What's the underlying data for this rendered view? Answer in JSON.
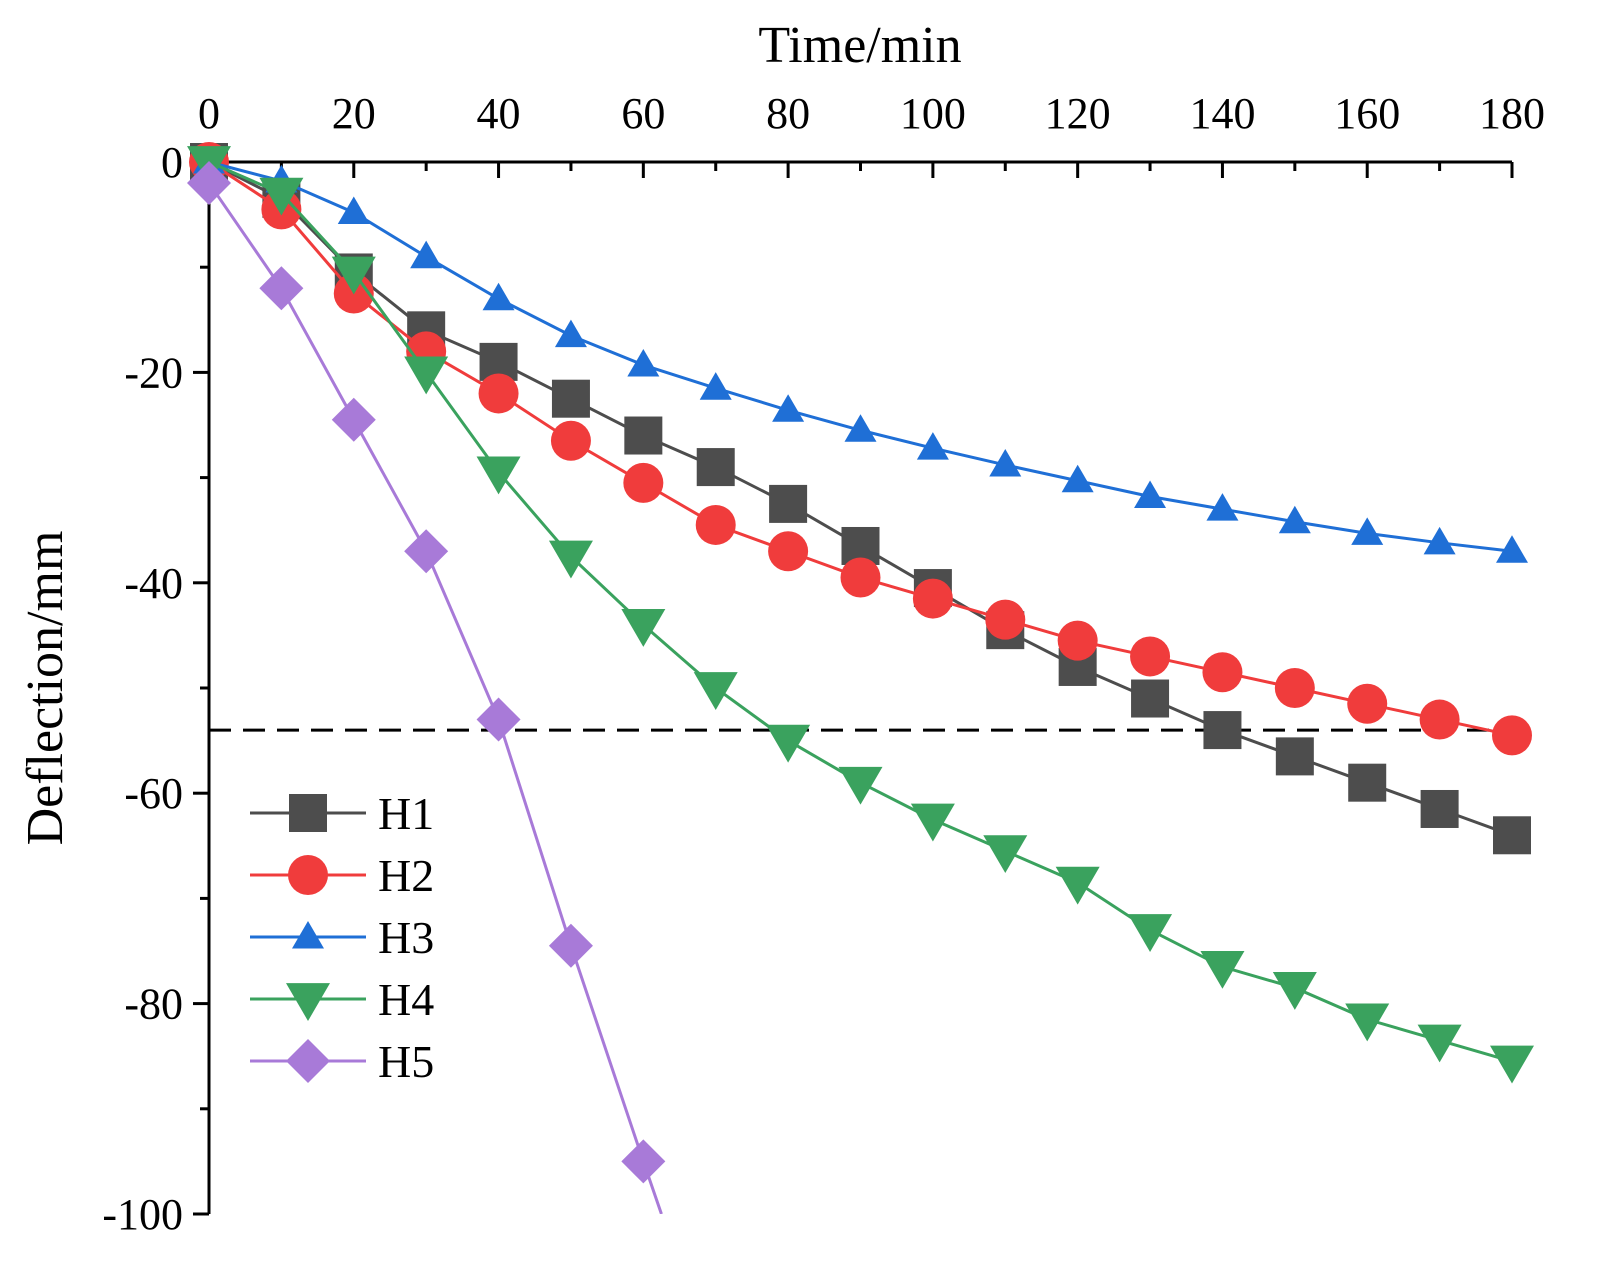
{
  "chart_data": {
    "type": "line",
    "title": "",
    "xlabel": "Time/min",
    "ylabel": "Deflection/mm",
    "xlim": [
      0,
      180
    ],
    "ylim": [
      -100,
      0
    ],
    "x_ticks": [
      0,
      20,
      40,
      60,
      80,
      100,
      120,
      140,
      160,
      180
    ],
    "y_ticks": [
      0,
      -20,
      -40,
      -60,
      -80,
      -100
    ],
    "x_tick_labels": [
      "0",
      "20",
      "40",
      "60",
      "80",
      "100",
      "120",
      "140",
      "160",
      "180"
    ],
    "y_tick_labels": [
      "0",
      "-20",
      "-40",
      "-60",
      "-80",
      "-100"
    ],
    "grid": false,
    "legend_position": "lower-left",
    "reference_line": {
      "y": -54,
      "style": "dashed",
      "color": "#000000"
    },
    "series": [
      {
        "name": "H1",
        "color": "#4d4d4d",
        "marker": "square",
        "x": [
          0,
          10,
          20,
          30,
          40,
          50,
          60,
          70,
          80,
          90,
          100,
          110,
          120,
          130,
          140,
          150,
          160,
          170,
          180
        ],
        "values": [
          0,
          -3.5,
          -10.5,
          -16,
          -19,
          -22.5,
          -26,
          -29,
          -32.5,
          -36.5,
          -40.5,
          -44.5,
          -48,
          -51,
          -54,
          -56.5,
          -59,
          -61.5,
          -64
        ]
      },
      {
        "name": "H2",
        "color": "#f03c3c",
        "marker": "circle",
        "x": [
          0,
          10,
          20,
          30,
          40,
          50,
          60,
          70,
          80,
          90,
          100,
          110,
          120,
          130,
          140,
          150,
          160,
          170,
          180
        ],
        "values": [
          0,
          -4.5,
          -12.5,
          -18,
          -22,
          -26.5,
          -30.5,
          -34.5,
          -37,
          -39.5,
          -41.5,
          -43.5,
          -45.5,
          -47,
          -48.5,
          -50,
          -51.5,
          -53,
          -54.5
        ]
      },
      {
        "name": "H3",
        "color": "#1f6fd6",
        "marker": "triangle-up",
        "x": [
          0,
          10,
          20,
          30,
          40,
          50,
          60,
          70,
          80,
          90,
          100,
          110,
          120,
          130,
          140,
          150,
          160,
          170,
          180
        ],
        "values": [
          0,
          -1.8,
          -4.8,
          -9,
          -13,
          -16.5,
          -19.3,
          -21.5,
          -23.6,
          -25.5,
          -27.2,
          -28.8,
          -30.3,
          -31.8,
          -33,
          -34.2,
          -35.3,
          -36.2,
          -37
        ]
      },
      {
        "name": "H4",
        "color": "#3aa25e",
        "marker": "triangle-down",
        "x": [
          0,
          10,
          20,
          30,
          40,
          50,
          60,
          70,
          80,
          90,
          100,
          110,
          120,
          130,
          140,
          150,
          160,
          170,
          180
        ],
        "values": [
          0,
          -3,
          -10.5,
          -20,
          -29.5,
          -37.5,
          -44,
          -50,
          -55,
          -59,
          -62.5,
          -65.5,
          -68.5,
          -73,
          -76.5,
          -78.5,
          -81.5,
          -83.5,
          -85.5
        ]
      },
      {
        "name": "H5",
        "color": "#a87ad8",
        "marker": "diamond",
        "x": [
          0,
          10,
          20,
          30,
          40,
          50,
          60,
          62.5
        ],
        "values": [
          -2,
          -12,
          -24.5,
          -37,
          -53,
          -74.5,
          -95,
          -100
        ]
      }
    ]
  }
}
